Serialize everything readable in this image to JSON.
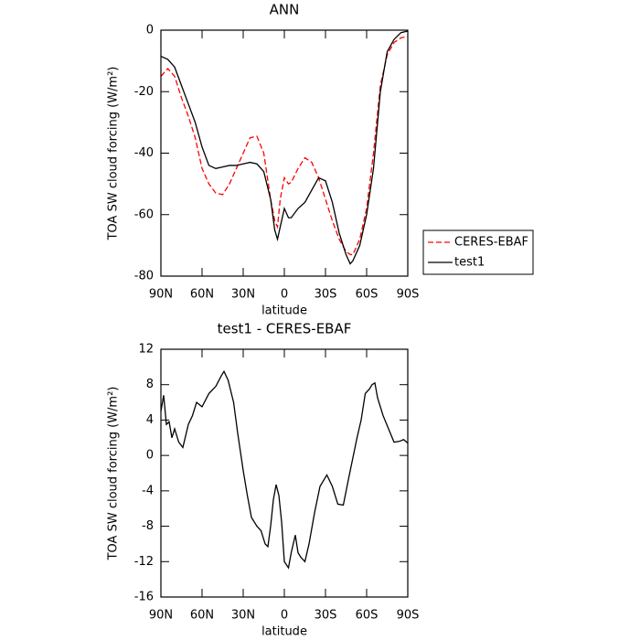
{
  "chart_data": [
    {
      "type": "line",
      "title": "ANN",
      "xlabel": "latitude",
      "ylabel": "TOA SW cloud forcing (W/m²)",
      "x": [
        90,
        85,
        80,
        75,
        70,
        65,
        60,
        55,
        50,
        45,
        40,
        35,
        30,
        25,
        20,
        15,
        10,
        7,
        5,
        3,
        0,
        -3,
        -5,
        -10,
        -15,
        -20,
        -25,
        -30,
        -35,
        -40,
        -45,
        -48,
        -50,
        -55,
        -60,
        -65,
        -70,
        -75,
        -80,
        -85,
        -90
      ],
      "series": [
        {
          "name": "CERES-EBAF",
          "color": "#ff0000",
          "dash": true,
          "values": [
            -15,
            -12.5,
            -15,
            -22,
            -28,
            -35,
            -45,
            -50,
            -53,
            -53.5,
            -50,
            -45,
            -40,
            -35,
            -34.5,
            -40,
            -55,
            -62,
            -64,
            -55,
            -48,
            -50,
            -49.5,
            -45,
            -41.5,
            -43,
            -48,
            -55,
            -62,
            -68,
            -72,
            -73,
            -73,
            -68,
            -58,
            -40,
            -18,
            -8,
            -4,
            -2.5,
            -2
          ]
        },
        {
          "name": "test1",
          "color": "#000000",
          "dash": false,
          "values": [
            -8.5,
            -9.5,
            -12,
            -18,
            -24,
            -30,
            -38,
            -44,
            -45,
            -44.5,
            -44,
            -44,
            -43.5,
            -43,
            -43.5,
            -46,
            -55,
            -65,
            -68,
            -64,
            -58,
            -61,
            -61,
            -58,
            -56,
            -52,
            -48,
            -49,
            -56,
            -66,
            -73,
            -76,
            -75,
            -70,
            -60,
            -45,
            -20,
            -7,
            -3,
            -0.8,
            -0.3
          ]
        }
      ],
      "xlim": [
        90,
        -90
      ],
      "xticks": [
        {
          "value": 90,
          "label": "90N"
        },
        {
          "value": 60,
          "label": "60N"
        },
        {
          "value": 30,
          "label": "30N"
        },
        0,
        {
          "value": -30,
          "label": "30S"
        },
        {
          "value": -60,
          "label": "60S"
        },
        {
          "value": -90,
          "label": "90S"
        }
      ],
      "ylim": [
        -80,
        0
      ],
      "yticks": [
        -80,
        -60,
        -40,
        -20,
        0
      ],
      "legend": "right"
    },
    {
      "type": "line",
      "title": "test1 - CERES-EBAF",
      "xlabel": "latitude",
      "ylabel": "TOA SW cloud forcing (W/m²)",
      "x": [
        90,
        88,
        86,
        84,
        82,
        80,
        77,
        74,
        70,
        67,
        64,
        60,
        55,
        50,
        46,
        44,
        41,
        37,
        34,
        30,
        27,
        24,
        20,
        17,
        14,
        12,
        10,
        8,
        6,
        4,
        2,
        0,
        -3,
        -5,
        -8,
        -10,
        -12,
        -15,
        -18,
        -22,
        -26,
        -31,
        -35,
        -39,
        -43,
        -47,
        -53,
        -56,
        -59,
        -62,
        -64,
        -66,
        -68,
        -72,
        -76,
        -80,
        -84,
        -87,
        -90
      ],
      "series": [
        {
          "color": "#000000",
          "dash": false,
          "values": [
            5,
            6.8,
            3.5,
            3.8,
            2,
            3,
            1.5,
            0.9,
            3.5,
            4.5,
            6,
            5.5,
            7,
            7.8,
            9,
            9.5,
            8.5,
            6,
            2.5,
            -1.7,
            -4.5,
            -7,
            -8,
            -8.5,
            -10,
            -10.3,
            -8,
            -5,
            -3.3,
            -4.5,
            -7.5,
            -12,
            -12.7,
            -11,
            -9,
            -11,
            -11.5,
            -12,
            -10,
            -6.5,
            -3.5,
            -2.2,
            -3.5,
            -5.5,
            -5.6,
            -2.5,
            2,
            4,
            7,
            7.5,
            8,
            8.2,
            6.5,
            4.5,
            3,
            1.5,
            1.6,
            1.8,
            1.4
          ]
        }
      ],
      "xlim": [
        90,
        -90
      ],
      "xticks": [
        {
          "value": 90,
          "label": "90N"
        },
        {
          "value": 60,
          "label": "60N"
        },
        {
          "value": 30,
          "label": "30N"
        },
        0,
        {
          "value": -30,
          "label": "30S"
        },
        {
          "value": -60,
          "label": "60S"
        },
        {
          "value": -90,
          "label": "90S"
        }
      ],
      "ylim": [
        -16,
        12
      ],
      "yticks": [
        -16,
        -12,
        -8,
        -4,
        0,
        4,
        8,
        12
      ]
    }
  ]
}
